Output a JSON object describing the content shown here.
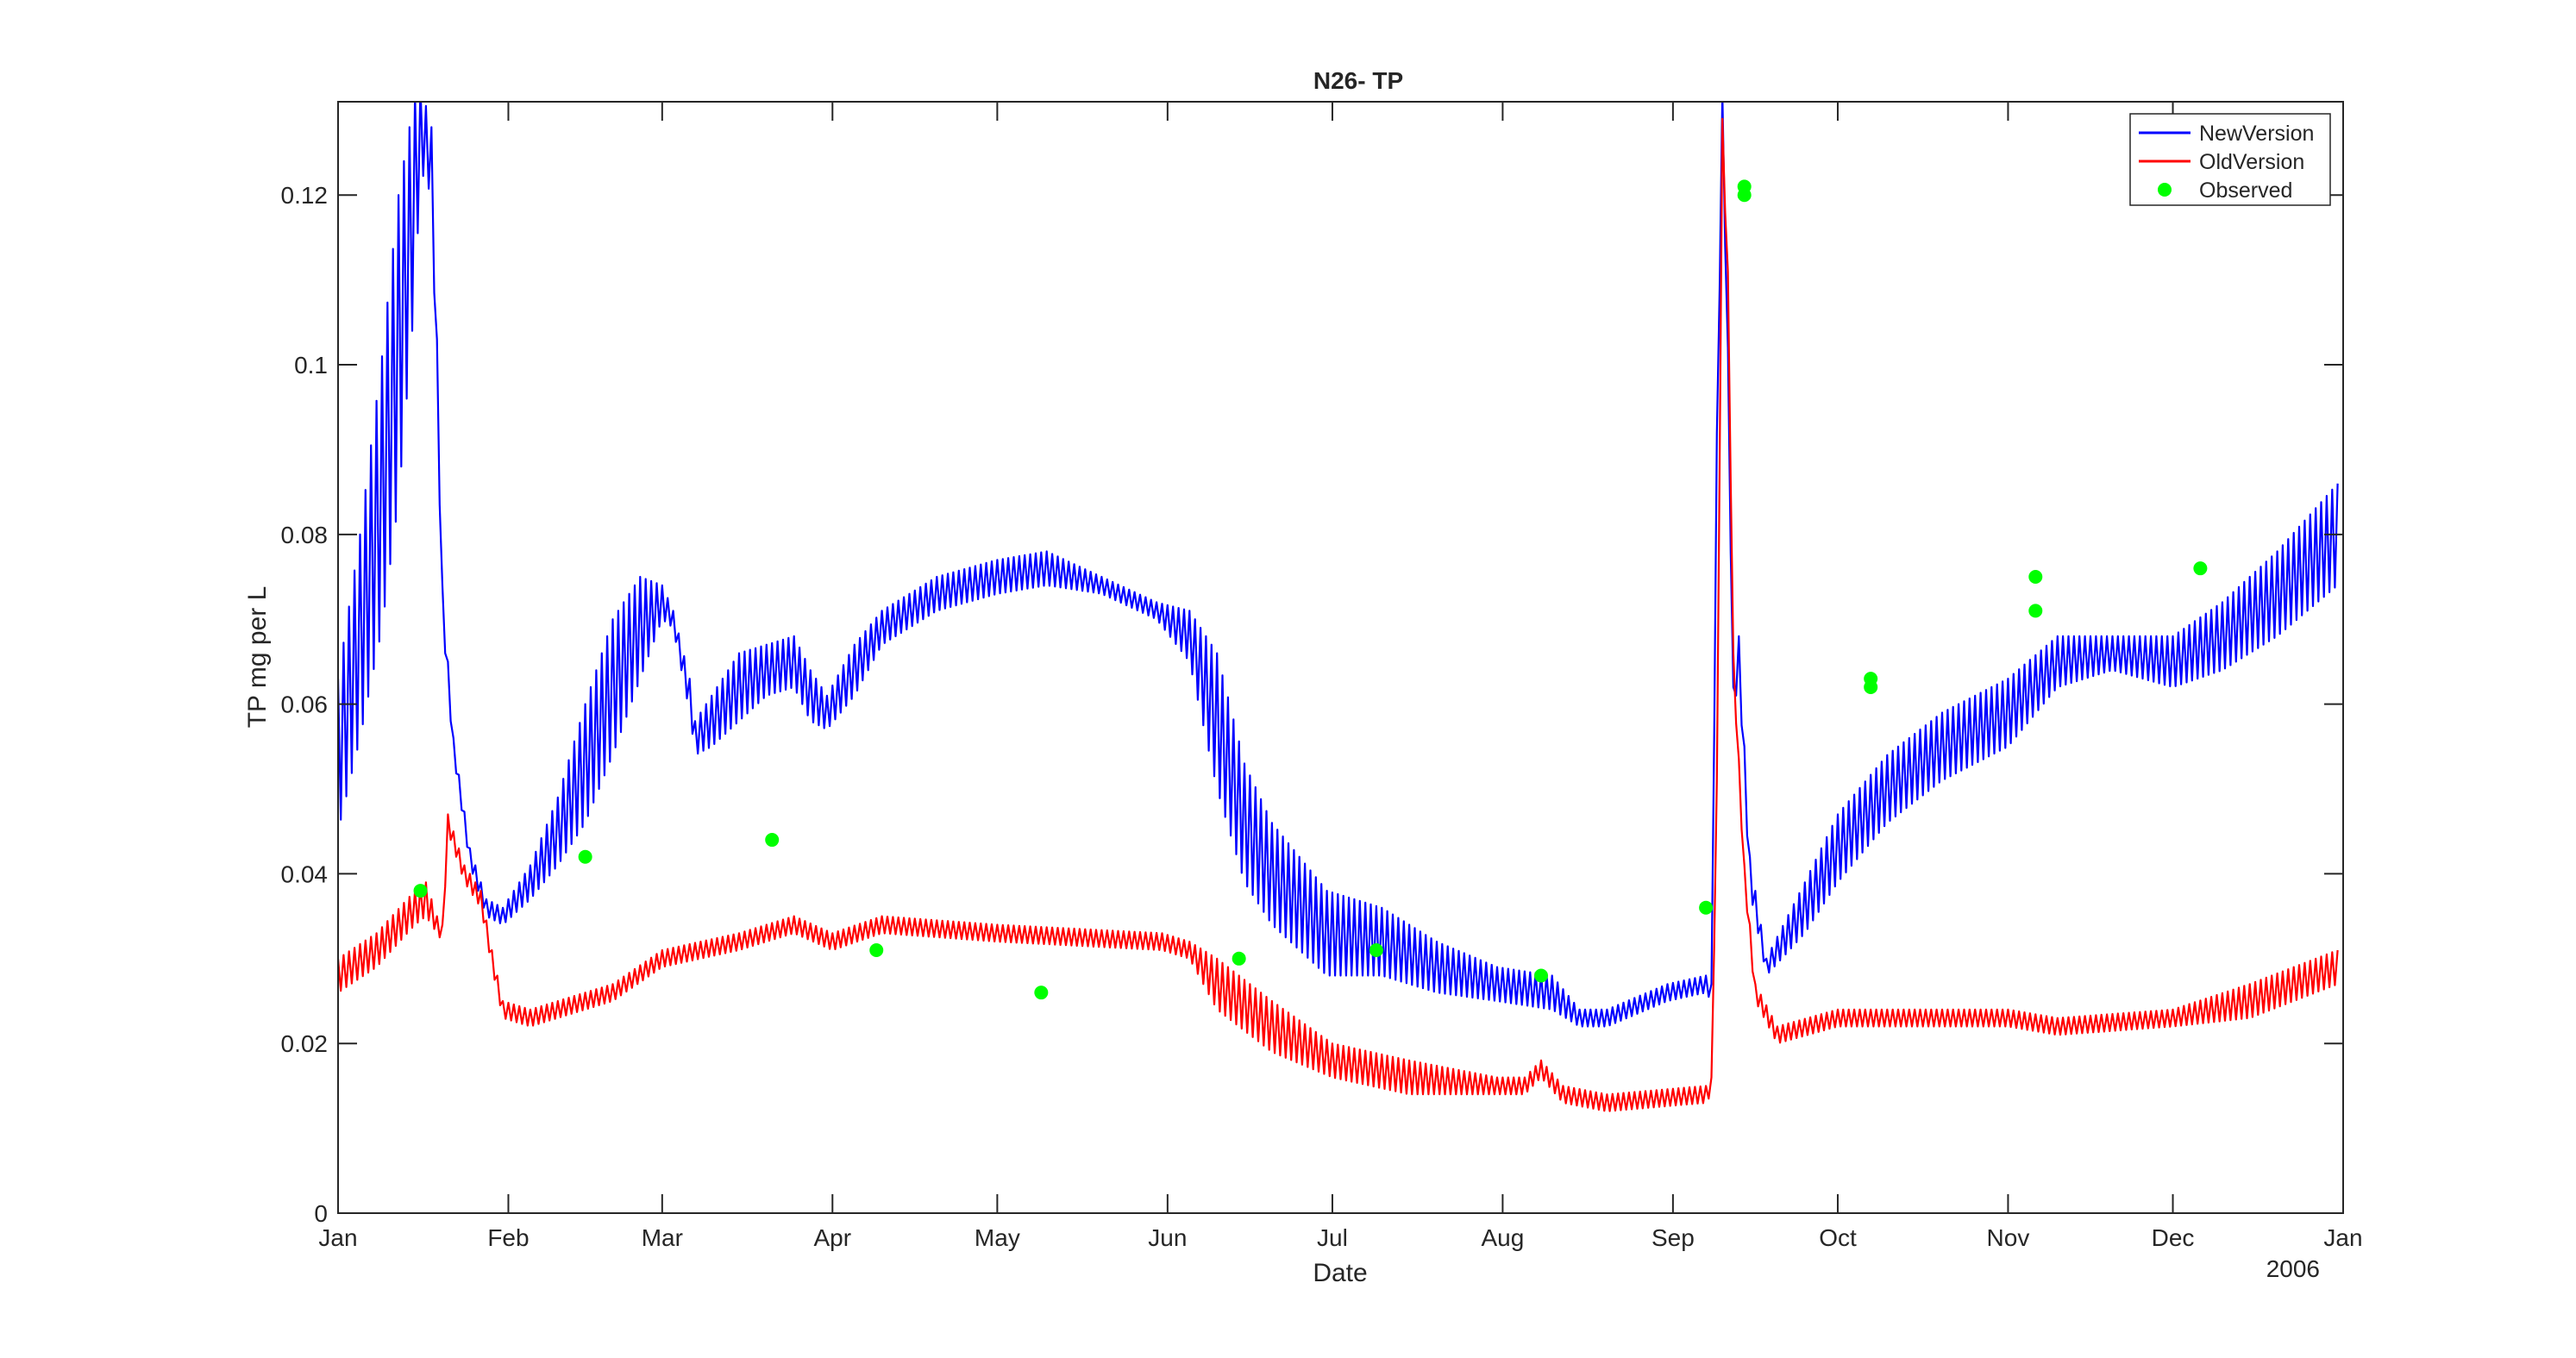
{
  "chart_data": {
    "type": "line",
    "title": "N26- TP",
    "xlabel": "Date",
    "ylabel": "TP mg per L",
    "year_label": "2006",
    "x_ticks": [
      "Jan",
      "Feb",
      "Mar",
      "Apr",
      "May",
      "Jun",
      "Jul",
      "Aug",
      "Sep",
      "Oct",
      "Nov",
      "Dec",
      "Jan"
    ],
    "y_ticks": [
      "0",
      "0.02",
      "0.04",
      "0.06",
      "0.08",
      "0.1",
      "0.12"
    ],
    "xlim": [
      "2006-01-01",
      "2007-01-01"
    ],
    "ylim": [
      0,
      0.131
    ],
    "grid": false,
    "legend_position": "top-right",
    "series": [
      {
        "name": "NewVersion",
        "kind": "line",
        "color": "#0000ff",
        "oscillating": true,
        "points": [
          [
            "2006-01-01",
            0.054,
            0.009
          ],
          [
            "2006-01-05",
            0.068,
            0.012
          ],
          [
            "2006-01-09",
            0.085,
            0.016
          ],
          [
            "2006-01-12",
            0.102,
            0.018
          ],
          [
            "2006-01-15",
            0.12,
            0.012
          ],
          [
            "2006-01-16",
            0.128,
            0.005
          ],
          [
            "2006-01-18",
            0.124,
            0.004
          ],
          [
            "2006-01-19",
            0.1,
            0.003
          ],
          [
            "2006-01-20",
            0.072,
            0.002
          ],
          [
            "2006-01-22",
            0.055,
            0.001
          ],
          [
            "2006-01-25",
            0.042,
            0.001
          ],
          [
            "2006-01-28",
            0.036,
            0.001
          ],
          [
            "2006-01-31",
            0.035,
            0.001
          ],
          [
            "2006-02-05",
            0.039,
            0.002
          ],
          [
            "2006-02-10",
            0.045,
            0.004
          ],
          [
            "2006-02-15",
            0.053,
            0.007
          ],
          [
            "2006-02-20",
            0.062,
            0.008
          ],
          [
            "2006-02-25",
            0.069,
            0.006
          ],
          [
            "2006-03-01",
            0.072,
            0.002
          ],
          [
            "2006-03-03",
            0.07,
            0.001
          ],
          [
            "2006-03-06",
            0.061,
            0.002
          ],
          [
            "2006-03-07",
            0.056,
            0.002
          ],
          [
            "2006-03-10",
            0.058,
            0.003
          ],
          [
            "2006-03-15",
            0.062,
            0.004
          ],
          [
            "2006-03-20",
            0.064,
            0.003
          ],
          [
            "2006-03-25",
            0.065,
            0.003
          ],
          [
            "2006-03-28",
            0.061,
            0.003
          ],
          [
            "2006-03-31",
            0.059,
            0.002
          ],
          [
            "2006-04-05",
            0.064,
            0.003
          ],
          [
            "2006-04-10",
            0.069,
            0.002
          ],
          [
            "2006-04-20",
            0.073,
            0.002
          ],
          [
            "2006-05-01",
            0.075,
            0.002
          ],
          [
            "2006-05-10",
            0.076,
            0.002
          ],
          [
            "2006-05-20",
            0.074,
            0.001
          ],
          [
            "2006-05-30",
            0.071,
            0.001
          ],
          [
            "2006-06-05",
            0.068,
            0.003
          ],
          [
            "2006-06-10",
            0.058,
            0.008
          ],
          [
            "2006-06-15",
            0.046,
            0.007
          ],
          [
            "2006-06-20",
            0.04,
            0.006
          ],
          [
            "2006-06-30",
            0.033,
            0.005
          ],
          [
            "2006-07-10",
            0.032,
            0.004
          ],
          [
            "2006-07-20",
            0.029,
            0.003
          ],
          [
            "2006-07-31",
            0.027,
            0.002
          ],
          [
            "2006-08-10",
            0.026,
            0.002
          ],
          [
            "2006-08-15",
            0.023,
            0.001
          ],
          [
            "2006-08-20",
            0.023,
            0.001
          ],
          [
            "2006-08-31",
            0.026,
            0.001
          ],
          [
            "2006-09-07",
            0.027,
            0.001
          ],
          [
            "2006-09-08",
            0.026,
            0.001
          ],
          [
            "2006-09-09",
            0.09,
            0.002
          ],
          [
            "2006-09-10",
            0.131,
            0.001
          ],
          [
            "2006-09-11",
            0.1,
            0.002
          ],
          [
            "2006-09-12",
            0.06,
            0.002
          ],
          [
            "2006-09-13",
            0.066,
            0.002
          ],
          [
            "2006-09-15",
            0.04,
            0.002
          ],
          [
            "2006-09-18",
            0.029,
            0.001
          ],
          [
            "2006-09-25",
            0.036,
            0.003
          ],
          [
            "2006-10-01",
            0.043,
            0.004
          ],
          [
            "2006-10-10",
            0.05,
            0.004
          ],
          [
            "2006-10-20",
            0.055,
            0.004
          ],
          [
            "2006-11-01",
            0.059,
            0.004
          ],
          [
            "2006-11-10",
            0.065,
            0.003
          ],
          [
            "2006-11-20",
            0.066,
            0.002
          ],
          [
            "2006-12-01",
            0.065,
            0.003
          ],
          [
            "2006-12-10",
            0.068,
            0.004
          ],
          [
            "2006-12-20",
            0.073,
            0.005
          ],
          [
            "2006-12-31",
            0.08,
            0.006
          ]
        ]
      },
      {
        "name": "OldVersion",
        "kind": "line",
        "color": "#ff0000",
        "oscillating": true,
        "points": [
          [
            "2006-01-01",
            0.028,
            0.002
          ],
          [
            "2006-01-08",
            0.031,
            0.002
          ],
          [
            "2006-01-15",
            0.036,
            0.002
          ],
          [
            "2006-01-17",
            0.037,
            0.002
          ],
          [
            "2006-01-19",
            0.034,
            0.001
          ],
          [
            "2006-01-20",
            0.033,
            0.001
          ],
          [
            "2006-01-21",
            0.046,
            0.001
          ],
          [
            "2006-01-24",
            0.04,
            0.001
          ],
          [
            "2006-01-27",
            0.037,
            0.001
          ],
          [
            "2006-01-29",
            0.03,
            0.001
          ],
          [
            "2006-01-31",
            0.024,
            0.001
          ],
          [
            "2006-02-05",
            0.023,
            0.001
          ],
          [
            "2006-02-20",
            0.026,
            0.001
          ],
          [
            "2006-03-01",
            0.03,
            0.001
          ],
          [
            "2006-03-15",
            0.032,
            0.001
          ],
          [
            "2006-03-25",
            0.034,
            0.001
          ],
          [
            "2006-04-01",
            0.032,
            0.001
          ],
          [
            "2006-04-10",
            0.034,
            0.001
          ],
          [
            "2006-05-01",
            0.033,
            0.001
          ],
          [
            "2006-05-31",
            0.032,
            0.001
          ],
          [
            "2006-06-05",
            0.031,
            0.001
          ],
          [
            "2006-06-10",
            0.027,
            0.003
          ],
          [
            "2006-06-20",
            0.022,
            0.003
          ],
          [
            "2006-07-01",
            0.018,
            0.002
          ],
          [
            "2006-07-15",
            0.016,
            0.002
          ],
          [
            "2006-07-31",
            0.015,
            0.001
          ],
          [
            "2006-08-05",
            0.015,
            0.001
          ],
          [
            "2006-08-08",
            0.017,
            0.001
          ],
          [
            "2006-08-12",
            0.014,
            0.001
          ],
          [
            "2006-08-20",
            0.013,
            0.001
          ],
          [
            "2006-09-07",
            0.014,
            0.001
          ],
          [
            "2006-09-08",
            0.015,
            0.001
          ],
          [
            "2006-09-09",
            0.05,
            0.001
          ],
          [
            "2006-09-10",
            0.128,
            0.001
          ],
          [
            "2006-09-11",
            0.11,
            0.001
          ],
          [
            "2006-09-12",
            0.065,
            0.001
          ],
          [
            "2006-09-14",
            0.04,
            0.001
          ],
          [
            "2006-09-16",
            0.026,
            0.001
          ],
          [
            "2006-09-20",
            0.021,
            0.001
          ],
          [
            "2006-10-01",
            0.023,
            0.001
          ],
          [
            "2006-10-20",
            0.023,
            0.001
          ],
          [
            "2006-11-01",
            0.023,
            0.001
          ],
          [
            "2006-11-10",
            0.022,
            0.001
          ],
          [
            "2006-12-01",
            0.023,
            0.001
          ],
          [
            "2006-12-15",
            0.025,
            0.002
          ],
          [
            "2006-12-31",
            0.029,
            0.002
          ]
        ]
      },
      {
        "name": "Observed",
        "kind": "scatter",
        "color": "#00ff00",
        "points": [
          [
            "2006-01-16",
            0.038
          ],
          [
            "2006-02-15",
            0.042
          ],
          [
            "2006-03-21",
            0.044
          ],
          [
            "2006-04-09",
            0.031
          ],
          [
            "2006-05-09",
            0.026
          ],
          [
            "2006-06-14",
            0.03
          ],
          [
            "2006-07-09",
            0.031
          ],
          [
            "2006-08-08",
            0.028
          ],
          [
            "2006-09-07",
            0.036
          ],
          [
            "2006-09-14",
            0.121
          ],
          [
            "2006-09-14",
            0.12
          ],
          [
            "2006-10-07",
            0.063
          ],
          [
            "2006-10-07",
            0.062
          ],
          [
            "2006-11-06",
            0.075
          ],
          [
            "2006-11-06",
            0.071
          ],
          [
            "2006-12-06",
            0.076
          ]
        ]
      }
    ]
  }
}
